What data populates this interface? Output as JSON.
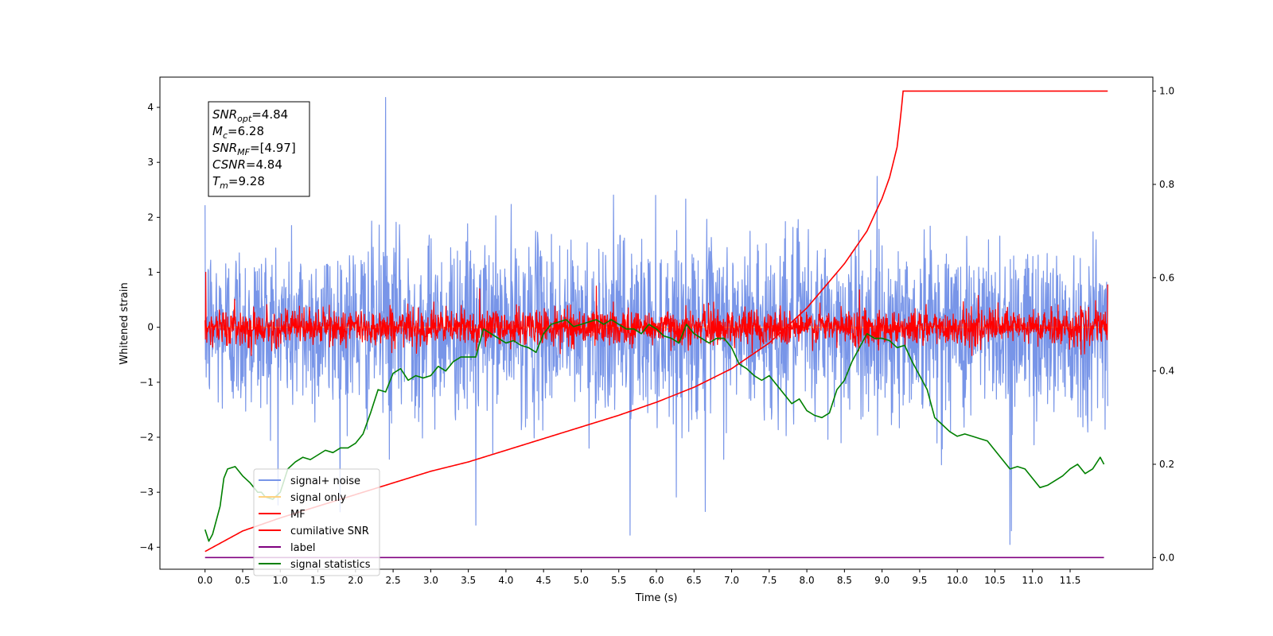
{
  "chart_data": {
    "type": "line",
    "xlabel": "Time (s)",
    "ylabel": "Whitened strain",
    "xlim": [
      -0.6,
      12.6
    ],
    "ylim": [
      -4.4,
      4.55
    ],
    "y2lim": [
      -0.025,
      1.03
    ],
    "x_ticks": [
      0.0,
      0.5,
      1.0,
      1.5,
      2.0,
      2.5,
      3.0,
      3.5,
      4.0,
      4.5,
      5.0,
      5.5,
      6.0,
      6.5,
      7.0,
      7.5,
      8.0,
      8.5,
      9.0,
      9.5,
      10.0,
      10.5,
      11.0,
      11.5
    ],
    "x_tick_labels": [
      "0.0",
      "0.5",
      "1.0",
      "1.5",
      "2.0",
      "2.5",
      "3.0",
      "3.5",
      "4.0",
      "4.5",
      "5.0",
      "5.5",
      "6.0",
      "6.5",
      "7.0",
      "7.5",
      "8.0",
      "8.5",
      "9.0",
      "9.5",
      "10.0",
      "10.5",
      "11.0",
      "11.5"
    ],
    "y_ticks": [
      -4,
      -3,
      -2,
      -1,
      0,
      1,
      2,
      3,
      4
    ],
    "y_tick_labels": [
      "−4",
      "−3",
      "−2",
      "−1",
      "0",
      "1",
      "2",
      "3",
      "4"
    ],
    "y2_ticks": [
      0.0,
      0.2,
      0.4,
      0.6,
      0.8,
      1.0
    ],
    "y2_tick_labels": [
      "0.0",
      "0.2",
      "0.4",
      "0.6",
      "0.8",
      "1.0"
    ],
    "grid": false,
    "legend_position": "lower-left",
    "annotation": {
      "lines": [
        {
          "base": "SNR",
          "sub": "opt",
          "rest": "=4.84"
        },
        {
          "base": "M",
          "sub": "c",
          "rest": "=6.28"
        },
        {
          "base": "SNR",
          "sub": "MF",
          "rest": "=[4.97]"
        },
        {
          "base": "CSNR",
          "sub": "",
          "rest": "=4.84"
        },
        {
          "base": "T",
          "sub": "m",
          "rest": "=9.28"
        }
      ]
    },
    "series": [
      {
        "name": "signal+ noise",
        "color": "#7895e8",
        "axis": "left",
        "kind": "noise",
        "x_range": [
          0.0,
          12.0
        ],
        "amplitude": 0.8,
        "extremes": [
          {
            "x": 2.4,
            "y": 4.18
          },
          {
            "x": 2.45,
            "y": -2.4
          },
          {
            "x": 3.6,
            "y": -3.6
          },
          {
            "x": 5.65,
            "y": -3.78
          },
          {
            "x": 6.65,
            "y": -3.35
          },
          {
            "x": 10.7,
            "y": -3.95
          },
          {
            "x": 10.72,
            "y": -3.7
          }
        ]
      },
      {
        "name": "signal only",
        "color": "#ffd27f",
        "axis": "left",
        "kind": "flat",
        "x_range": [
          0.0,
          12.0
        ],
        "values": [
          0.0
        ]
      },
      {
        "name": "MF",
        "color": "#ff0000",
        "axis": "left",
        "kind": "noise",
        "x_range": [
          0.0,
          12.0
        ],
        "amplitude": 0.16,
        "extremes": [
          {
            "x": 0.01,
            "y": 1.0
          },
          {
            "x": 3.65,
            "y": 0.7
          },
          {
            "x": 5.2,
            "y": 0.75
          },
          {
            "x": 8.7,
            "y": 0.68
          },
          {
            "x": 12.0,
            "y": 0.78
          }
        ]
      },
      {
        "name": "cumilative SNR",
        "color": "#ff0000",
        "axis": "right",
        "x": [
          0.0,
          0.5,
          1.0,
          1.5,
          2.0,
          2.5,
          3.0,
          3.5,
          4.0,
          4.5,
          5.0,
          5.5,
          6.0,
          6.5,
          7.0,
          7.5,
          8.0,
          8.5,
          8.8,
          9.0,
          9.1,
          9.2,
          9.25,
          9.28,
          12.0
        ],
        "values": [
          0.013,
          0.057,
          0.085,
          0.11,
          0.135,
          0.16,
          0.185,
          0.205,
          0.23,
          0.255,
          0.28,
          0.305,
          0.333,
          0.365,
          0.405,
          0.46,
          0.535,
          0.63,
          0.7,
          0.77,
          0.815,
          0.88,
          0.95,
          1.0,
          1.0
        ]
      },
      {
        "name": "label",
        "color": "#800080",
        "axis": "right",
        "x": [
          0.0,
          11.95
        ],
        "values": [
          0.0,
          0.0
        ]
      },
      {
        "name": "signal statistics",
        "color": "#008000",
        "axis": "right",
        "x": [
          0.0,
          0.05,
          0.1,
          0.2,
          0.25,
          0.3,
          0.4,
          0.5,
          0.6,
          0.7,
          0.75,
          0.8,
          0.9,
          1.0,
          1.1,
          1.2,
          1.3,
          1.4,
          1.5,
          1.6,
          1.7,
          1.8,
          1.9,
          2.0,
          2.1,
          2.2,
          2.3,
          2.4,
          2.5,
          2.6,
          2.7,
          2.8,
          2.9,
          3.0,
          3.1,
          3.2,
          3.3,
          3.4,
          3.5,
          3.6,
          3.7,
          3.8,
          3.9,
          4.0,
          4.1,
          4.2,
          4.3,
          4.4,
          4.5,
          4.6,
          4.7,
          4.8,
          4.9,
          5.0,
          5.1,
          5.2,
          5.3,
          5.4,
          5.5,
          5.6,
          5.7,
          5.8,
          5.9,
          6.0,
          6.1,
          6.2,
          6.3,
          6.4,
          6.5,
          6.6,
          6.7,
          6.8,
          6.9,
          7.0,
          7.1,
          7.2,
          7.3,
          7.4,
          7.5,
          7.6,
          7.7,
          7.8,
          7.9,
          8.0,
          8.1,
          8.2,
          8.3,
          8.4,
          8.5,
          8.6,
          8.7,
          8.8,
          8.9,
          9.0,
          9.1,
          9.2,
          9.3,
          9.4,
          9.5,
          9.6,
          9.7,
          9.8,
          9.9,
          10.0,
          10.1,
          10.2,
          10.3,
          10.4,
          10.5,
          10.6,
          10.7,
          10.8,
          10.9,
          11.0,
          11.1,
          11.2,
          11.3,
          11.4,
          11.5,
          11.6,
          11.7,
          11.8,
          11.9,
          11.95
        ],
        "values": [
          0.06,
          0.035,
          0.05,
          0.11,
          0.17,
          0.19,
          0.195,
          0.175,
          0.16,
          0.14,
          0.14,
          0.13,
          0.125,
          0.14,
          0.19,
          0.205,
          0.215,
          0.21,
          0.22,
          0.23,
          0.225,
          0.235,
          0.235,
          0.245,
          0.265,
          0.31,
          0.36,
          0.355,
          0.395,
          0.405,
          0.38,
          0.39,
          0.385,
          0.39,
          0.41,
          0.4,
          0.42,
          0.43,
          0.43,
          0.43,
          0.49,
          0.48,
          0.47,
          0.46,
          0.465,
          0.455,
          0.45,
          0.44,
          0.48,
          0.5,
          0.505,
          0.51,
          0.495,
          0.5,
          0.505,
          0.51,
          0.5,
          0.51,
          0.5,
          0.49,
          0.49,
          0.48,
          0.5,
          0.49,
          0.475,
          0.47,
          0.46,
          0.5,
          0.48,
          0.47,
          0.46,
          0.47,
          0.47,
          0.45,
          0.415,
          0.405,
          0.39,
          0.38,
          0.39,
          0.37,
          0.35,
          0.33,
          0.34,
          0.315,
          0.305,
          0.3,
          0.31,
          0.36,
          0.38,
          0.42,
          0.45,
          0.48,
          0.47,
          0.47,
          0.465,
          0.45,
          0.455,
          0.42,
          0.39,
          0.36,
          0.3,
          0.285,
          0.27,
          0.26,
          0.265,
          0.26,
          0.255,
          0.25,
          0.23,
          0.21,
          0.19,
          0.195,
          0.19,
          0.17,
          0.15,
          0.155,
          0.165,
          0.175,
          0.19,
          0.2,
          0.18,
          0.19,
          0.215,
          0.2
        ]
      }
    ]
  }
}
